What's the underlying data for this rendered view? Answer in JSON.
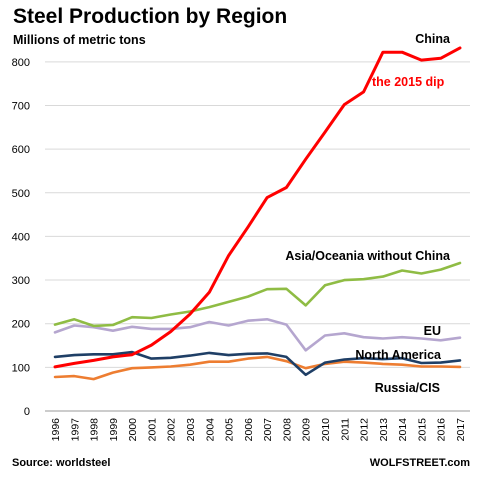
{
  "chart_data": {
    "type": "line",
    "title": "Steel Production by Region",
    "ylabel": "Millions of metric tons",
    "xlabel": "",
    "ylim": [
      0,
      850
    ],
    "yticks": [
      0,
      100,
      200,
      300,
      400,
      500,
      600,
      700,
      800
    ],
    "x": [
      "1996",
      "1997",
      "1998",
      "1999",
      "2000",
      "2001",
      "2002",
      "2003",
      "2004",
      "2005",
      "2006",
      "2007",
      "2008",
      "2009",
      "2010",
      "2011",
      "2012",
      "2013",
      "2014",
      "2015",
      "2016",
      "2017"
    ],
    "grid": true,
    "legend": "inline labels",
    "annotation": {
      "text": "the 2015 dip",
      "color": "#ff0000"
    },
    "series": [
      {
        "name": "China",
        "color": "#ff0000",
        "values": [
          101,
          109,
          116,
          124,
          129,
          151,
          182,
          222,
          272,
          356,
          421,
          489,
          512,
          577,
          639,
          702,
          731,
          822,
          822,
          804,
          808,
          832
        ]
      },
      {
        "name": "Asia/Oceania without China",
        "color": "#8fbc44",
        "values": [
          198,
          210,
          195,
          197,
          215,
          213,
          221,
          228,
          238,
          250,
          262,
          279,
          280,
          242,
          288,
          300,
          302,
          308,
          322,
          315,
          324,
          339
        ]
      },
      {
        "name": "EU",
        "color": "#b5a6cf",
        "values": [
          180,
          196,
          192,
          184,
          193,
          188,
          188,
          192,
          204,
          196,
          207,
          210,
          198,
          139,
          173,
          178,
          169,
          166,
          169,
          166,
          162,
          168
        ]
      },
      {
        "name": "North America",
        "color": "#1f3f66",
        "values": [
          124,
          128,
          130,
          130,
          135,
          120,
          122,
          127,
          133,
          128,
          131,
          132,
          124,
          83,
          111,
          118,
          121,
          119,
          121,
          110,
          111,
          116
        ]
      },
      {
        "name": "Russia/CIS",
        "color": "#ed7d31",
        "values": [
          78,
          80,
          73,
          88,
          98,
          100,
          102,
          106,
          113,
          113,
          120,
          124,
          114,
          98,
          108,
          113,
          111,
          108,
          106,
          102,
          102,
          101
        ]
      }
    ]
  },
  "footer": {
    "source": "Source: worldsteel",
    "brand": "WOLFSTREET.com"
  }
}
